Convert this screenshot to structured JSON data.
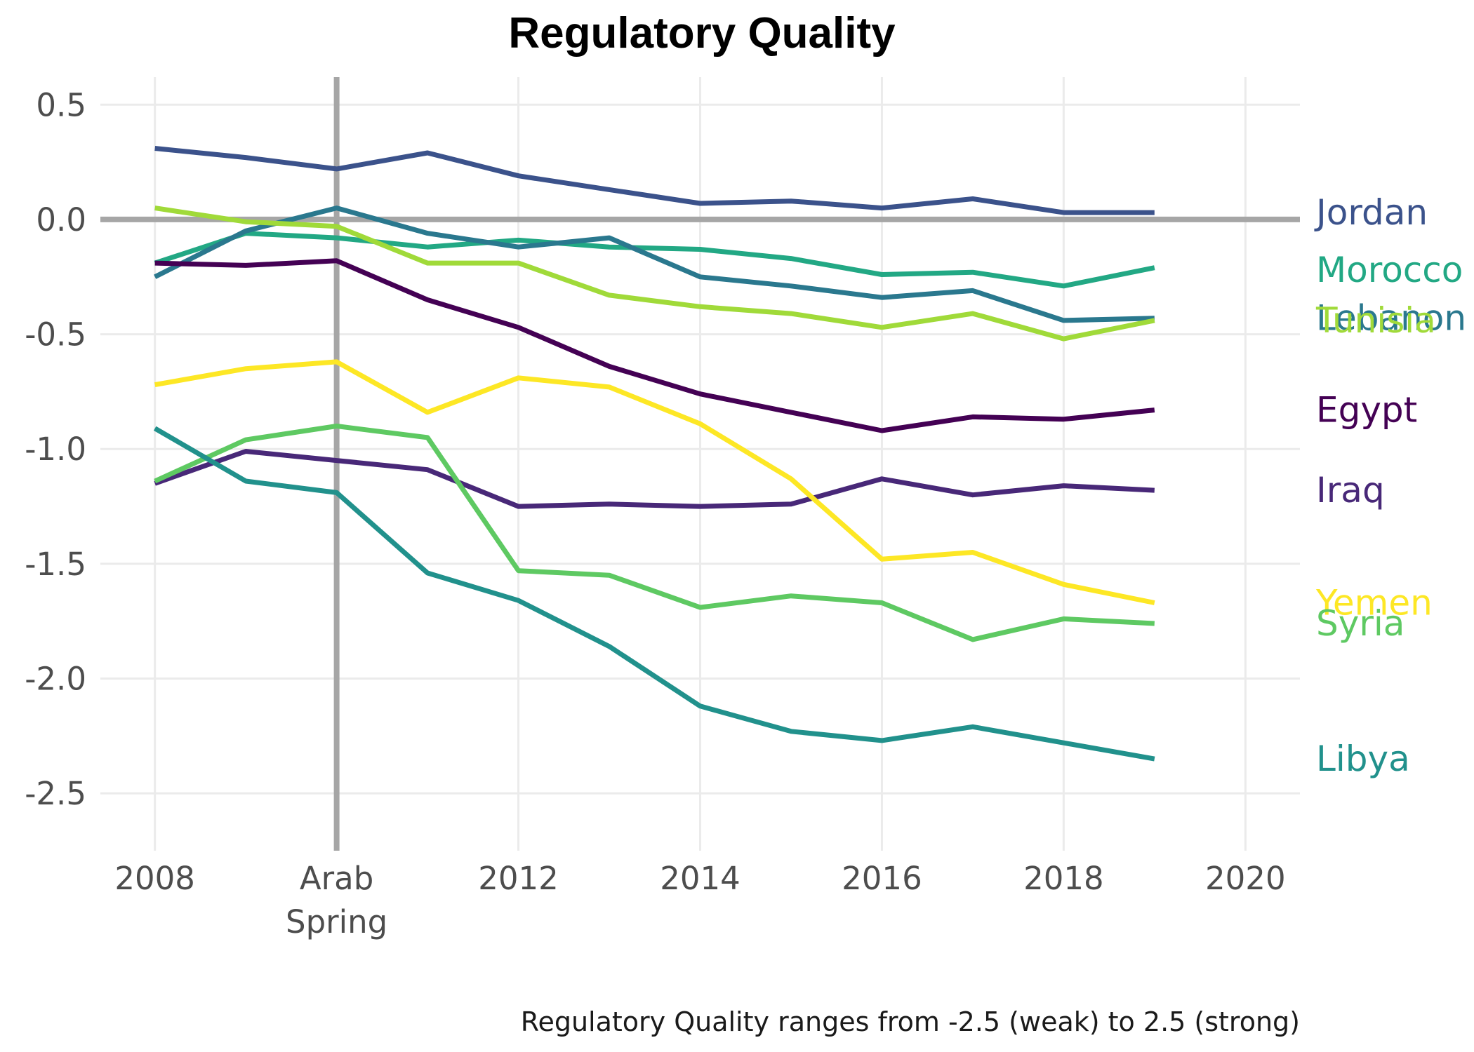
{
  "chart_data": {
    "type": "line",
    "title": "Regulatory Quality",
    "caption": "Regulatory Quality ranges from -2.5 (weak) to 2.5 (strong)",
    "xlabel": "",
    "ylabel": "",
    "x": [
      2008,
      2009,
      2010,
      2011,
      2012,
      2013,
      2014,
      2015,
      2016,
      2017,
      2018,
      2019
    ],
    "xlim": [
      2007.4,
      2020.6
    ],
    "ylim": [
      -2.75,
      0.62
    ],
    "x_ticks": [
      {
        "value": 2008,
        "label": "2008"
      },
      {
        "value": 2010,
        "label": "Arab\nSpring"
      },
      {
        "value": 2012,
        "label": "2012"
      },
      {
        "value": 2014,
        "label": "2014"
      },
      {
        "value": 2016,
        "label": "2016"
      },
      {
        "value": 2018,
        "label": "2018"
      },
      {
        "value": 2020,
        "label": "2020"
      }
    ],
    "y_ticks": [
      {
        "value": 0.5,
        "label": "0.5"
      },
      {
        "value": 0.0,
        "label": "0.0"
      },
      {
        "value": -0.5,
        "label": "-0.5"
      },
      {
        "value": -1.0,
        "label": "-1.0"
      },
      {
        "value": -1.5,
        "label": "-1.5"
      },
      {
        "value": -2.0,
        "label": "-2.0"
      },
      {
        "value": -2.5,
        "label": "-2.5"
      }
    ],
    "reference_lines": {
      "vertical_x": 2010,
      "horizontal_y": 0,
      "color": "#a6a6a6"
    },
    "grid": true,
    "legend": "direct labels at right end of lines",
    "series": [
      {
        "name": "Jordan",
        "color": "#3b528b",
        "label_y": 0.03,
        "values": [
          0.31,
          0.27,
          0.22,
          0.29,
          0.19,
          0.13,
          0.07,
          0.08,
          0.05,
          0.09,
          0.03,
          0.03
        ]
      },
      {
        "name": "Morocco",
        "color": "#22a884",
        "label_y": -0.22,
        "values": [
          -0.19,
          -0.06,
          -0.08,
          -0.12,
          -0.09,
          -0.12,
          -0.13,
          -0.17,
          -0.24,
          -0.23,
          -0.29,
          -0.21
        ]
      },
      {
        "name": "Lebanon",
        "color": "#2a788e",
        "label_y": -0.43,
        "values": [
          -0.25,
          -0.05,
          0.05,
          -0.06,
          -0.12,
          -0.08,
          -0.25,
          -0.29,
          -0.34,
          -0.31,
          -0.44,
          -0.43
        ]
      },
      {
        "name": "Tunisia",
        "color": "#a0da39",
        "label_y": -0.44,
        "values": [
          0.05,
          -0.01,
          -0.03,
          -0.19,
          -0.19,
          -0.33,
          -0.38,
          -0.41,
          -0.47,
          -0.41,
          -0.52,
          -0.44
        ]
      },
      {
        "name": "Egypt",
        "color": "#440154",
        "label_y": -0.83,
        "values": [
          -0.19,
          -0.2,
          -0.18,
          -0.35,
          -0.47,
          -0.64,
          -0.76,
          -0.84,
          -0.92,
          -0.86,
          -0.87,
          -0.83
        ]
      },
      {
        "name": "Iraq",
        "color": "#482878",
        "label_y": -1.18,
        "values": [
          -1.15,
          -1.01,
          -1.05,
          -1.09,
          -1.25,
          -1.24,
          -1.25,
          -1.24,
          -1.13,
          -1.2,
          -1.16,
          -1.18
        ]
      },
      {
        "name": "Yemen",
        "color": "#fde725",
        "label_y": -1.67,
        "values": [
          -0.72,
          -0.65,
          -0.62,
          -0.84,
          -0.69,
          -0.73,
          -0.89,
          -1.13,
          -1.48,
          -1.45,
          -1.59,
          -1.67
        ]
      },
      {
        "name": "Syria",
        "color": "#5ec962",
        "label_y": -1.76,
        "values": [
          -1.14,
          -0.96,
          -0.9,
          -0.95,
          -1.53,
          -1.55,
          -1.69,
          -1.64,
          -1.67,
          -1.83,
          -1.74,
          -1.76
        ]
      },
      {
        "name": "Libya",
        "color": "#21918c",
        "label_y": -2.35,
        "values": [
          -0.91,
          -1.14,
          -1.19,
          -1.54,
          -1.66,
          -1.86,
          -2.12,
          -2.23,
          -2.27,
          -2.21,
          -2.28,
          -2.35
        ]
      }
    ]
  }
}
